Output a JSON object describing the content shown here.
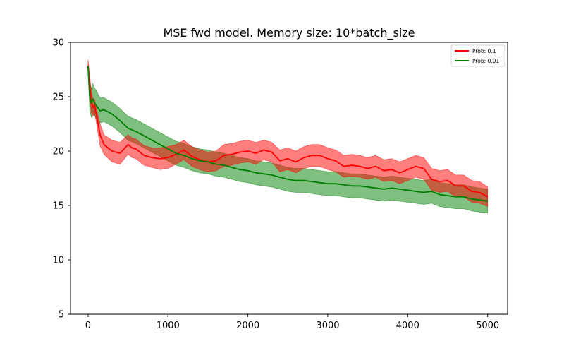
{
  "chart_data": {
    "type": "line",
    "title": "MSE fwd model. Memory size: 10*batch_size",
    "xlabel": "",
    "ylabel": "",
    "xlim": [
      -220,
      5250
    ],
    "ylim": [
      5,
      30
    ],
    "xticks": [
      0,
      1000,
      2000,
      3000,
      4000,
      5000
    ],
    "yticks": [
      5,
      10,
      15,
      20,
      25,
      30
    ],
    "grid": false,
    "legend_position": "top-right",
    "series": [
      {
        "name": "Prob: 0.1",
        "color": "#ff0000",
        "band_color": "#ff0000",
        "x": [
          0,
          20,
          40,
          60,
          80,
          100,
          150,
          200,
          300,
          400,
          500,
          550,
          600,
          700,
          800,
          900,
          1000,
          1100,
          1200,
          1300,
          1400,
          1500,
          1600,
          1700,
          1800,
          1900,
          2000,
          2100,
          2200,
          2300,
          2400,
          2500,
          2600,
          2700,
          2800,
          2900,
          3000,
          3100,
          3200,
          3300,
          3400,
          3500,
          3600,
          3700,
          3800,
          3900,
          4000,
          4100,
          4200,
          4300,
          4400,
          4500,
          4600,
          4700,
          4800,
          4900,
          5000
        ],
        "mean": [
          27.8,
          26.0,
          24.5,
          24.0,
          24.2,
          23.5,
          21.5,
          20.6,
          20.0,
          19.8,
          20.6,
          20.3,
          20.2,
          19.6,
          19.4,
          19.3,
          19.4,
          19.7,
          20.1,
          19.5,
          19.2,
          19.0,
          19.1,
          19.6,
          19.7,
          19.9,
          20.0,
          19.8,
          20.1,
          19.9,
          19.1,
          19.3,
          19.0,
          19.4,
          19.6,
          19.6,
          19.3,
          19.1,
          18.6,
          18.7,
          18.6,
          18.4,
          18.6,
          18.2,
          18.3,
          18.0,
          18.3,
          18.6,
          18.4,
          17.4,
          17.2,
          17.3,
          16.8,
          16.8,
          16.3,
          16.2,
          15.8
        ],
        "upper": [
          28.4,
          27.0,
          25.5,
          24.8,
          24.8,
          24.0,
          22.5,
          21.5,
          21.0,
          20.8,
          21.5,
          21.2,
          21.1,
          20.5,
          20.3,
          20.3,
          20.4,
          20.6,
          21.0,
          20.4,
          20.1,
          19.9,
          20.0,
          20.6,
          20.7,
          20.9,
          21.0,
          20.8,
          21.0,
          20.8,
          20.1,
          20.3,
          20.0,
          20.4,
          20.6,
          20.6,
          20.3,
          20.1,
          19.6,
          19.7,
          19.6,
          19.4,
          19.6,
          19.2,
          19.3,
          19.0,
          19.3,
          19.6,
          19.4,
          18.4,
          18.2,
          18.3,
          17.8,
          17.8,
          17.3,
          17.2,
          16.7
        ],
        "lower": [
          27.2,
          25.0,
          23.5,
          23.2,
          23.6,
          22.8,
          20.5,
          19.7,
          19.0,
          18.8,
          19.7,
          19.4,
          19.3,
          18.7,
          18.5,
          18.3,
          18.4,
          18.8,
          19.2,
          18.6,
          18.3,
          18.1,
          18.2,
          18.6,
          18.7,
          18.9,
          19.0,
          18.8,
          19.2,
          19.0,
          18.1,
          18.3,
          18.0,
          18.4,
          18.6,
          18.6,
          18.3,
          18.1,
          17.6,
          17.7,
          17.6,
          17.4,
          17.6,
          17.2,
          17.3,
          17.0,
          17.3,
          17.6,
          17.4,
          16.4,
          16.2,
          16.3,
          15.8,
          15.8,
          15.3,
          15.2,
          14.9
        ]
      },
      {
        "name": "Prob: 0.01",
        "color": "#008000",
        "band_color": "#008000",
        "x": [
          0,
          20,
          40,
          60,
          80,
          100,
          150,
          200,
          300,
          400,
          500,
          600,
          700,
          800,
          900,
          1000,
          1100,
          1200,
          1300,
          1400,
          1500,
          1600,
          1700,
          1800,
          1900,
          2000,
          2100,
          2200,
          2300,
          2400,
          2500,
          2600,
          2700,
          2800,
          2900,
          3000,
          3100,
          3200,
          3300,
          3400,
          3500,
          3600,
          3700,
          3800,
          3900,
          4000,
          4100,
          4200,
          4300,
          4400,
          4500,
          4600,
          4700,
          4800,
          4900,
          5000
        ],
        "mean": [
          27.8,
          25.0,
          24.4,
          24.8,
          24.5,
          24.2,
          23.7,
          23.8,
          23.4,
          22.8,
          22.1,
          21.8,
          21.4,
          21.0,
          20.6,
          20.2,
          19.8,
          19.6,
          19.3,
          19.1,
          19.0,
          18.8,
          18.7,
          18.5,
          18.3,
          18.2,
          18.0,
          17.9,
          17.8,
          17.6,
          17.4,
          17.3,
          17.3,
          17.2,
          17.1,
          17.0,
          17.0,
          16.9,
          16.8,
          16.8,
          16.7,
          16.6,
          16.5,
          16.6,
          16.5,
          16.4,
          16.3,
          16.2,
          16.3,
          16.0,
          15.9,
          15.8,
          15.8,
          15.6,
          15.5,
          15.4
        ],
        "upper": [
          27.9,
          26.3,
          25.8,
          26.2,
          25.8,
          25.6,
          24.9,
          24.9,
          24.5,
          23.9,
          23.2,
          22.9,
          22.5,
          22.1,
          21.7,
          21.3,
          20.9,
          20.7,
          20.4,
          20.2,
          20.1,
          19.9,
          19.8,
          19.6,
          19.4,
          19.3,
          19.1,
          19.0,
          18.9,
          18.7,
          18.5,
          18.4,
          18.4,
          18.3,
          18.2,
          18.1,
          18.1,
          18.0,
          17.9,
          17.9,
          17.8,
          17.7,
          17.6,
          17.7,
          17.6,
          17.5,
          17.4,
          17.3,
          17.4,
          17.1,
          17.0,
          16.9,
          16.9,
          16.7,
          16.6,
          16.5
        ],
        "lower": [
          27.7,
          23.8,
          23.1,
          23.5,
          23.3,
          23.0,
          22.6,
          22.7,
          22.3,
          21.7,
          21.0,
          20.7,
          20.3,
          19.9,
          19.5,
          19.1,
          18.7,
          18.5,
          18.2,
          18.0,
          17.9,
          17.7,
          17.6,
          17.4,
          17.2,
          17.1,
          16.9,
          16.8,
          16.7,
          16.5,
          16.3,
          16.2,
          16.2,
          16.1,
          16.0,
          15.9,
          15.9,
          15.8,
          15.7,
          15.7,
          15.6,
          15.5,
          15.4,
          15.5,
          15.4,
          15.3,
          15.2,
          15.1,
          15.2,
          14.9,
          14.8,
          14.7,
          14.7,
          14.5,
          14.4,
          14.3
        ]
      }
    ]
  }
}
